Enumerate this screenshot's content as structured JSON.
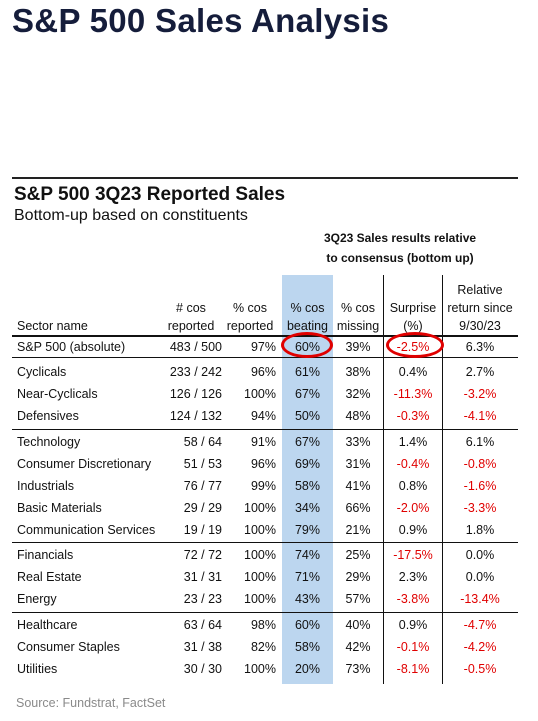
{
  "title": "S&P 500 Sales Analysis",
  "table_title": "S&P 500 3Q23 Reported Sales",
  "table_subtitle": "Bottom-up based on constituents",
  "group_header": [
    "3Q23 Sales results relative",
    "to consensus (bottom up)"
  ],
  "columns": {
    "sector": [
      "",
      "Sector name"
    ],
    "reported": [
      "# cos",
      "reported"
    ],
    "pct_reported": [
      "% cos",
      "reported"
    ],
    "beating": [
      "% cos",
      "beating"
    ],
    "missing": [
      "% cos",
      "missing"
    ],
    "surprise": [
      "Surprise",
      "(%)"
    ],
    "relative": [
      "Relative",
      "return since",
      "9/30/23"
    ]
  },
  "rows": [
    {
      "name": "S&P 500 (absolute)",
      "reported": "483 / 500",
      "pct_reported": "97%",
      "beating": "60%",
      "missing": "39%",
      "surprise": "-2.5%",
      "relative": "6.3%"
    },
    {
      "name": "Cyclicals",
      "reported": "233 / 242",
      "pct_reported": "96%",
      "beating": "61%",
      "missing": "38%",
      "surprise": "0.4%",
      "relative": "2.7%"
    },
    {
      "name": "Near-Cyclicals",
      "reported": "126 / 126",
      "pct_reported": "100%",
      "beating": "67%",
      "missing": "32%",
      "surprise": "-11.3%",
      "relative": "-3.2%"
    },
    {
      "name": "Defensives",
      "reported": "124 / 132",
      "pct_reported": "94%",
      "beating": "50%",
      "missing": "48%",
      "surprise": "-0.3%",
      "relative": "-4.1%"
    },
    {
      "name": "Technology",
      "reported": "58 / 64",
      "pct_reported": "91%",
      "beating": "67%",
      "missing": "33%",
      "surprise": "1.4%",
      "relative": "6.1%"
    },
    {
      "name": "Consumer Discretionary",
      "reported": "51 / 53",
      "pct_reported": "96%",
      "beating": "69%",
      "missing": "31%",
      "surprise": "-0.4%",
      "relative": "-0.8%"
    },
    {
      "name": "Industrials",
      "reported": "76 / 77",
      "pct_reported": "99%",
      "beating": "58%",
      "missing": "41%",
      "surprise": "0.8%",
      "relative": "-1.6%"
    },
    {
      "name": "Basic Materials",
      "reported": "29 / 29",
      "pct_reported": "100%",
      "beating": "34%",
      "missing": "66%",
      "surprise": "-2.0%",
      "relative": "-3.3%"
    },
    {
      "name": "Communication Services",
      "reported": "19 / 19",
      "pct_reported": "100%",
      "beating": "79%",
      "missing": "21%",
      "surprise": "0.9%",
      "relative": "1.8%"
    },
    {
      "name": "Financials",
      "reported": "72 / 72",
      "pct_reported": "100%",
      "beating": "74%",
      "missing": "25%",
      "surprise": "-17.5%",
      "relative": "0.0%"
    },
    {
      "name": "Real Estate",
      "reported": "31 / 31",
      "pct_reported": "100%",
      "beating": "71%",
      "missing": "29%",
      "surprise": "2.3%",
      "relative": "0.0%"
    },
    {
      "name": "Energy",
      "reported": "23 / 23",
      "pct_reported": "100%",
      "beating": "43%",
      "missing": "57%",
      "surprise": "-3.8%",
      "relative": "-13.4%"
    },
    {
      "name": "Healthcare",
      "reported": "63 / 64",
      "pct_reported": "98%",
      "beating": "60%",
      "missing": "40%",
      "surprise": "0.9%",
      "relative": "-4.7%"
    },
    {
      "name": "Consumer Staples",
      "reported": "31 / 38",
      "pct_reported": "82%",
      "beating": "58%",
      "missing": "42%",
      "surprise": "-0.1%",
      "relative": "-4.2%"
    },
    {
      "name": "Utilities",
      "reported": "30 / 30",
      "pct_reported": "100%",
      "beating": "20%",
      "missing": "73%",
      "surprise": "-8.1%",
      "relative": "-0.5%"
    }
  ],
  "colors": {
    "negative": "#e00000",
    "highlight": "#bcd6ef",
    "title": "#151d3b"
  },
  "source": "Source: Fundstrat, FactSet"
}
